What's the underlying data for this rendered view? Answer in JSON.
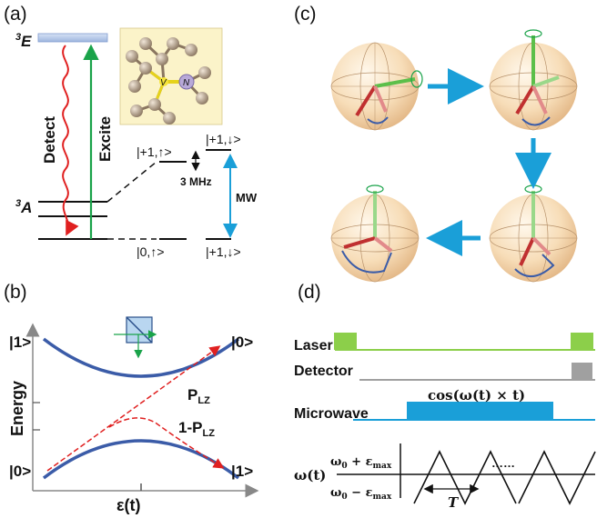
{
  "panels": {
    "a": {
      "tag": "(a)",
      "excited_state": "E",
      "excited_sup": "3",
      "ground_state": "A",
      "ground_sup": "3",
      "detect": "Detect",
      "excite": "Excite",
      "lattice_v": "V",
      "lattice_n": "N",
      "level_up_top": "|+1,↑>",
      "level_down_top": "|+1,↓>",
      "splitting": "3 MHz",
      "mw": "MW",
      "level_up_bottom": "|0,↑>",
      "level_down_bottom": "|+1,↓>"
    },
    "b": {
      "tag": "(b)",
      "y_label": "Energy",
      "x_label": "ε(t)",
      "left_top": "|1>",
      "left_bottom": "|0>",
      "right_top": "|0>",
      "right_bottom": "|1>",
      "p_lz": "P",
      "p_lz_sub": "LZ",
      "one_minus": "1-P",
      "one_minus_sub": "LZ"
    },
    "c": {
      "tag": "(c)"
    },
    "d": {
      "tag": "(d)",
      "laser": "Laser",
      "detector": "Detector",
      "microwave": "Microwave",
      "cos": "cos(ω(t) × t)",
      "omega_t": "ω(t)",
      "upper": "ω",
      "upper_tail": " + ε",
      "upper_sub": "max",
      "lower": "ω",
      "lower_tail": " − ε",
      "lower_sub": "max",
      "zero_sub": "0",
      "dots": "……",
      "period": "T"
    },
    "colors": {
      "detect_red": "#e02020",
      "excite_green": "#1aa34a",
      "mw_blue": "#1a9fd8",
      "curve_blue": "#3b5ca8",
      "laser_green": "#8ccf4a",
      "detector_gray": "#a0a0a0"
    }
  }
}
